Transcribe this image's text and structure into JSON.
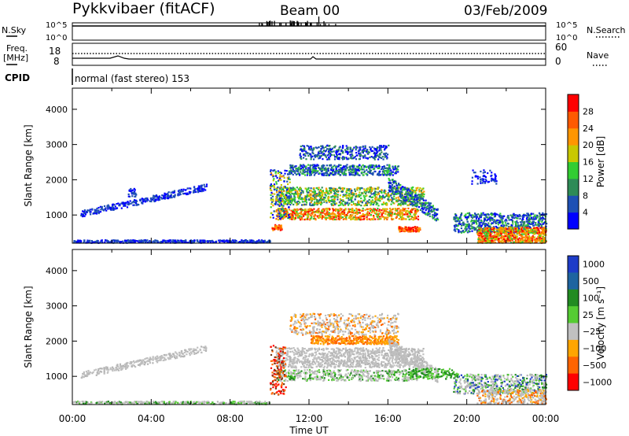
{
  "header": {
    "radar": "Pykkvibaer (fitACF)",
    "beam": "Beam 00",
    "date": "03/Feb/2009"
  },
  "top_panels": {
    "nsky_label": "N.Sky",
    "nsearch_label": "N.Search",
    "freq_label": "Freq.",
    "freq_unit": "[MHz]",
    "nave_label": "Nave",
    "cpid_label": "CPID",
    "cpid_text": "normal (fast stereo) 153",
    "noise_ticks": [
      "10^5",
      "10^0"
    ],
    "freq_ticks_left": [
      "18",
      "8"
    ],
    "nave_ticks_right": [
      "60",
      "0"
    ]
  },
  "colors": {
    "power_scale": [
      "#0000ff",
      "#1e50b4",
      "#2e8b57",
      "#32cd32",
      "#c8c800",
      "#ff9600",
      "#ff5a00",
      "#ff0000"
    ],
    "velocity_scale": [
      "#1e3cc8",
      "#1e64a0",
      "#228b22",
      "#55cc33",
      "#c0c0c0",
      "#ffa500",
      "#ff6400",
      "#ff0000"
    ],
    "grey_scatter": "#c0c0c0"
  },
  "chart_data": [
    {
      "type": "heatmap",
      "title": "",
      "xlabel": "Time UT",
      "ylabel": "Slant Range [km]",
      "x_ticks": [
        "00:00",
        "04:00",
        "08:00",
        "12:00",
        "16:00",
        "20:00",
        "00:00"
      ],
      "y_ticks": [
        "1000",
        "2000",
        "3000",
        "4000"
      ],
      "ylim": [
        200,
        4600
      ],
      "colorbar": {
        "label": "Power [dB]",
        "ticks": [
          "4",
          "8",
          "12",
          "16",
          "20",
          "24",
          "28"
        ],
        "range": [
          0,
          30
        ]
      }
    },
    {
      "type": "heatmap",
      "title": "",
      "xlabel": "Time UT",
      "ylabel": "Slant Range [km]",
      "x_ticks": [
        "00:00",
        "04:00",
        "08:00",
        "12:00",
        "16:00",
        "20:00",
        "00:00"
      ],
      "y_ticks": [
        "1000",
        "2000",
        "3000",
        "4000"
      ],
      "ylim": [
        200,
        4600
      ],
      "colorbar": {
        "label": "Velocity [m s⁻¹]",
        "ticks": [
          "1000",
          "500",
          "100",
          "25",
          "−25",
          "−100",
          "−500",
          "−1000"
        ],
        "range": [
          -1000,
          1000
        ]
      }
    }
  ]
}
